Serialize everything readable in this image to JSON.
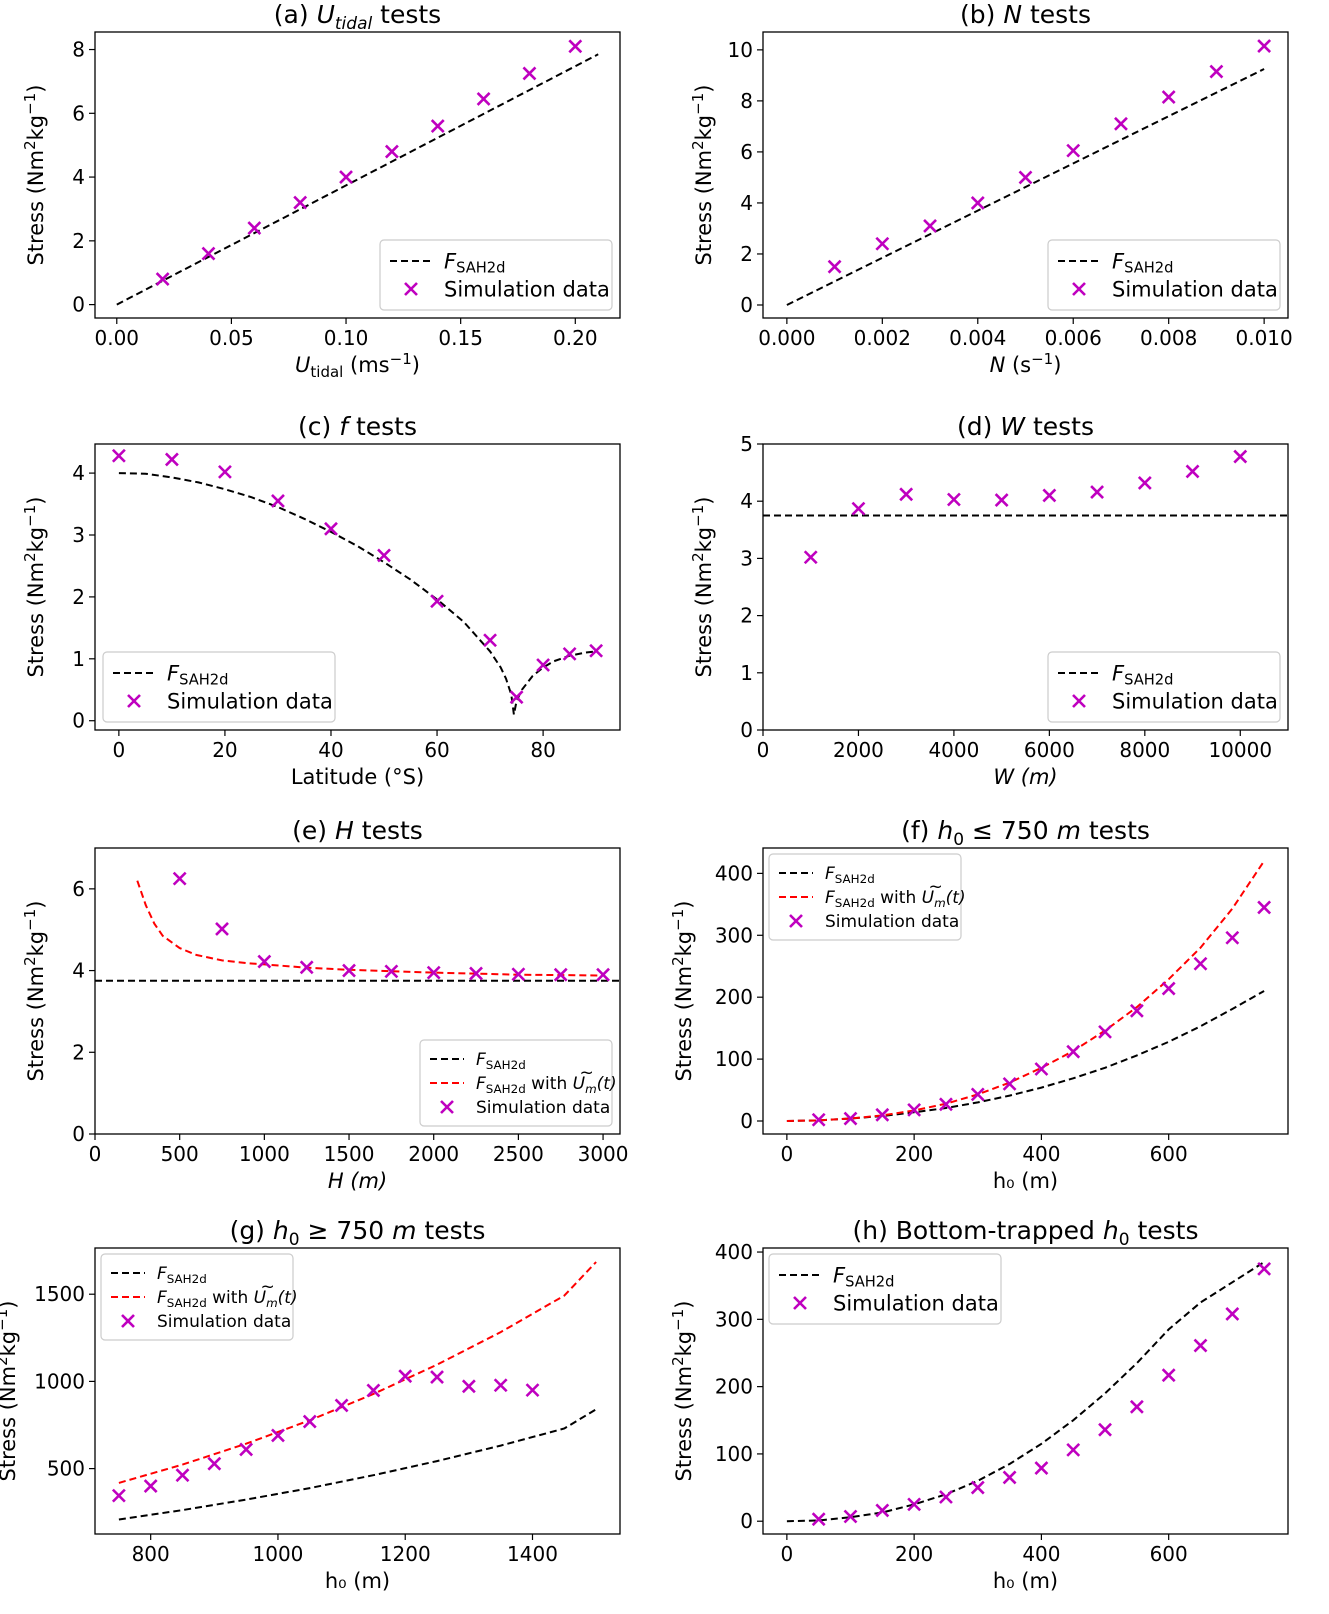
{
  "colors": {
    "fit": "#000000",
    "fit_mod": "#ff0000",
    "sim": "#bf00bf",
    "axes": "#000000",
    "legend_border": "#cccccc"
  },
  "chart_data": [
    {
      "id": "a",
      "type": "scatter+line",
      "title_prefix": "(a) ",
      "title_var": "U",
      "title_var_sub": "tidal",
      "title_suffix": " tests",
      "xlabel": "U",
      "xlabel_sub": "tidal",
      "xlabel_rest": " (ms",
      "xlabel_sup": "−1",
      "xlabel_end": ")",
      "ylabel": "Stress (Nm",
      "ylabel_sup1": "2",
      "ylabel_mid": "kg",
      "ylabel_sup2": "−1",
      "ylabel_end": ")",
      "xlim": [
        -0.0095,
        0.2195
      ],
      "ylim": [
        -0.42,
        8.55
      ],
      "xticks": [
        0.0,
        0.05,
        0.1,
        0.15,
        0.2
      ],
      "xtick_labels": [
        "0.00",
        "0.05",
        "0.10",
        "0.15",
        "0.20"
      ],
      "yticks": [
        0,
        2,
        4,
        6,
        8
      ],
      "ytick_labels": [
        "0",
        "2",
        "4",
        "6",
        "8"
      ],
      "legend_position": "lower-right",
      "fit": {
        "label": "F",
        "label_sub": "SAH2d",
        "x": [
          0,
          0.21
        ],
        "y": [
          0,
          7.85
        ]
      },
      "sim": {
        "label": "Simulation data",
        "x": [
          0.02,
          0.04,
          0.06,
          0.08,
          0.1,
          0.12,
          0.14,
          0.16,
          0.18,
          0.2
        ],
        "y": [
          0.8,
          1.6,
          2.4,
          3.2,
          4.0,
          4.8,
          5.6,
          6.45,
          7.25,
          8.1
        ]
      }
    },
    {
      "id": "b",
      "type": "scatter+line",
      "title_prefix": "(b) ",
      "title_var": "N",
      "title_suffix": " tests",
      "xlabel": "N",
      "xlabel_rest": " (s",
      "xlabel_sup": "−1",
      "xlabel_end": ")",
      "ylabel": "Stress (Nm",
      "ylabel_sup1": "2",
      "ylabel_mid": "kg",
      "ylabel_sup2": "−1",
      "ylabel_end": ")",
      "xlim": [
        -0.0005,
        0.0105
      ],
      "ylim": [
        -0.51,
        10.7
      ],
      "xticks": [
        0,
        0.002,
        0.004,
        0.006,
        0.008,
        0.01
      ],
      "xtick_labels": [
        "0.000",
        "0.002",
        "0.004",
        "0.006",
        "0.008",
        "0.010"
      ],
      "yticks": [
        0,
        2,
        4,
        6,
        8,
        10
      ],
      "ytick_labels": [
        "0",
        "2",
        "4",
        "6",
        "8",
        "10"
      ],
      "legend_position": "lower-right",
      "fit": {
        "label": "F",
        "label_sub": "SAH2d",
        "x": [
          0,
          0.01
        ],
        "y": [
          0,
          9.25
        ]
      },
      "sim": {
        "label": "Simulation data",
        "x": [
          0.001,
          0.002,
          0.003,
          0.004,
          0.005,
          0.006,
          0.007,
          0.008,
          0.009,
          0.01
        ],
        "y": [
          1.5,
          2.4,
          3.1,
          4.0,
          5.0,
          6.05,
          7.1,
          8.15,
          9.15,
          10.15
        ]
      }
    },
    {
      "id": "c",
      "type": "scatter+line",
      "title_prefix": "(c) ",
      "title_var": "f",
      "title_suffix": " tests",
      "xlabel_plain": "Latitude (°S)",
      "ylabel": "Stress (Nm",
      "ylabel_sup1": "2",
      "ylabel_mid": "kg",
      "ylabel_sup2": "−1",
      "ylabel_end": ")",
      "xlim": [
        -4.5,
        94.5
      ],
      "ylim": [
        -0.15,
        4.47
      ],
      "xticks": [
        0,
        20,
        40,
        60,
        80
      ],
      "xtick_labels": [
        "0",
        "20",
        "40",
        "60",
        "80"
      ],
      "yticks": [
        0,
        1,
        2,
        3,
        4
      ],
      "ytick_labels": [
        "0",
        "1",
        "2",
        "3",
        "4"
      ],
      "legend_position": "lower-left",
      "fit": {
        "label": "F",
        "label_sub": "SAH2d",
        "x": [
          0,
          5,
          10,
          15,
          20,
          25,
          30,
          35,
          40,
          45,
          50,
          55,
          60,
          65,
          70,
          72,
          73,
          74,
          74.5,
          75,
          76,
          78,
          80,
          82,
          85,
          88,
          90
        ],
        "y": [
          4.0,
          3.99,
          3.93,
          3.85,
          3.74,
          3.61,
          3.45,
          3.26,
          3.05,
          2.82,
          2.56,
          2.28,
          1.96,
          1.6,
          1.12,
          0.86,
          0.68,
          0.42,
          0.1,
          0.32,
          0.5,
          0.72,
          0.86,
          0.96,
          1.05,
          1.1,
          1.12
        ]
      },
      "sim": {
        "label": "Simulation data",
        "x": [
          0,
          10,
          20,
          30,
          40,
          50,
          60,
          70,
          75,
          80,
          85,
          90
        ],
        "y": [
          4.28,
          4.22,
          4.02,
          3.55,
          3.1,
          2.67,
          1.93,
          1.3,
          0.38,
          0.9,
          1.08,
          1.13
        ]
      }
    },
    {
      "id": "d",
      "type": "scatter+line",
      "title_prefix": "(d) ",
      "title_var": "W",
      "title_suffix": " tests",
      "xlabel": "W",
      "xlabel_italic_unit": " (m)",
      "ylabel": "Stress (Nm",
      "ylabel_sup1": "2",
      "ylabel_mid": "kg",
      "ylabel_sup2": "−1",
      "ylabel_end": ")",
      "xlim": [
        0,
        11000
      ],
      "ylim": [
        0,
        5
      ],
      "xticks": [
        0,
        2000,
        4000,
        6000,
        8000,
        10000
      ],
      "xtick_labels": [
        "0",
        "2000",
        "4000",
        "6000",
        "8000",
        "10000"
      ],
      "yticks": [
        0,
        1,
        2,
        3,
        4,
        5
      ],
      "ytick_labels": [
        "0",
        "1",
        "2",
        "3",
        "4",
        "5"
      ],
      "legend_position": "lower-right",
      "fit": {
        "label": "F",
        "label_sub": "SAH2d",
        "x": [
          0,
          11000
        ],
        "y": [
          3.75,
          3.75
        ]
      },
      "sim": {
        "label": "Simulation data",
        "x": [
          1000,
          2000,
          3000,
          4000,
          5000,
          6000,
          7000,
          8000,
          9000,
          10000
        ],
        "y": [
          3.02,
          3.87,
          4.12,
          4.03,
          4.02,
          4.1,
          4.16,
          4.32,
          4.52,
          4.78
        ]
      }
    },
    {
      "id": "e",
      "type": "scatter+line",
      "title_prefix": "(e) ",
      "title_var": "H",
      "title_suffix": " tests",
      "xlabel": "H",
      "xlabel_italic_unit": " (m)",
      "ylabel": "Stress (Nm",
      "ylabel_sup1": "2",
      "ylabel_mid": "kg",
      "ylabel_sup2": "−1",
      "ylabel_end": ")",
      "xlim": [
        0,
        3100
      ],
      "ylim": [
        0,
        7.0
      ],
      "xticks": [
        0,
        500,
        1000,
        1500,
        2000,
        2500,
        3000
      ],
      "xtick_labels": [
        "0",
        "500",
        "1000",
        "1500",
        "2000",
        "2500",
        "3000"
      ],
      "yticks": [
        0,
        2,
        4,
        6
      ],
      "ytick_labels": [
        "0",
        "2",
        "4",
        "6"
      ],
      "legend_position": "lower-right",
      "fit": {
        "label": "F",
        "label_sub": "SAH2d",
        "x": [
          0,
          3100
        ],
        "y": [
          3.75,
          3.75
        ]
      },
      "fit_mod": {
        "label": "F",
        "label_sub": "SAH2d",
        "label_rest": " with ",
        "label_u": "U",
        "label_u_sub": "m",
        "label_end": "(t)",
        "x": [
          250,
          300,
          350,
          400,
          500,
          600,
          750,
          900,
          1000,
          1250,
          1500,
          2000,
          2500,
          3000
        ],
        "y": [
          6.2,
          5.6,
          5.15,
          4.85,
          4.55,
          4.38,
          4.25,
          4.18,
          4.15,
          4.07,
          4.02,
          3.95,
          3.9,
          3.88
        ]
      },
      "sim": {
        "label": "Simulation data",
        "x": [
          500,
          750,
          1000,
          1250,
          1500,
          1750,
          2000,
          2250,
          2500,
          2750,
          3000
        ],
        "y": [
          6.25,
          5.02,
          4.22,
          4.08,
          4.0,
          3.98,
          3.95,
          3.93,
          3.91,
          3.9,
          3.9
        ]
      }
    },
    {
      "id": "f",
      "type": "scatter+line",
      "title_prefix": "(f) ",
      "title_var": "h",
      "title_var_sub": "0",
      "title_suffix": " ≤ 750 ",
      "title_unit": "m",
      "title_end": " tests",
      "xlabel_plain": "h₀ (m)",
      "ylabel": "Stress (Nm",
      "ylabel_sup1": "2",
      "ylabel_mid": "kg",
      "ylabel_sup2": "−1",
      "ylabel_end": ")",
      "xlim": [
        -37.5,
        787.5
      ],
      "ylim": [
        -21,
        441
      ],
      "xticks": [
        0,
        200,
        400,
        600
      ],
      "xtick_labels": [
        "0",
        "200",
        "400",
        "600"
      ],
      "yticks": [
        0,
        100,
        200,
        300,
        400
      ],
      "ytick_labels": [
        "0",
        "100",
        "200",
        "300",
        "400"
      ],
      "legend_position": "upper-left",
      "fit": {
        "label": "F",
        "label_sub": "SAH2d",
        "x": [
          0,
          50,
          100,
          150,
          200,
          250,
          300,
          350,
          400,
          450,
          500,
          550,
          600,
          650,
          700,
          750
        ],
        "y": [
          0,
          1,
          4,
          8,
          14,
          21,
          30,
          41,
          54,
          69,
          86,
          106,
          128,
          153,
          181,
          210
        ]
      },
      "fit_mod": {
        "label": "F",
        "label_sub": "SAH2d",
        "label_rest": " with ",
        "label_u": "U",
        "label_u_sub": "m",
        "label_end": "(t)",
        "x": [
          0,
          50,
          100,
          150,
          200,
          250,
          300,
          350,
          400,
          450,
          500,
          550,
          600,
          650,
          700,
          750
        ],
        "y": [
          0,
          1,
          4,
          9,
          17,
          28,
          43,
          62,
          86,
          113,
          146,
          184,
          229,
          280,
          343,
          420
        ]
      },
      "sim": {
        "label": "Simulation data",
        "x": [
          50,
          100,
          150,
          200,
          250,
          300,
          350,
          400,
          450,
          500,
          550,
          600,
          650,
          700,
          750
        ],
        "y": [
          2,
          4,
          10,
          18,
          27,
          43,
          60,
          84,
          112,
          144,
          178,
          214,
          254,
          296,
          345
        ]
      }
    },
    {
      "id": "g",
      "type": "scatter+line",
      "title_prefix": "(g) ",
      "title_var": "h",
      "title_var_sub": "0",
      "title_suffix": " ≥ 750 ",
      "title_unit": "m",
      "title_end": " tests",
      "xlabel_plain": "h₀ (m)",
      "ylabel": "Stress (Nm",
      "ylabel_sup1": "2",
      "ylabel_mid": "kg",
      "ylabel_sup2": "−1",
      "ylabel_end": ")",
      "xlim": [
        712.5,
        1537.5
      ],
      "ylim": [
        125,
        1765
      ],
      "xticks": [
        800,
        1000,
        1200,
        1400
      ],
      "xtick_labels": [
        "800",
        "1000",
        "1200",
        "1400"
      ],
      "yticks": [
        500,
        1000,
        1500
      ],
      "ytick_labels": [
        "500",
        "1000",
        "1500"
      ],
      "legend_position": "upper-left",
      "fit": {
        "label": "F",
        "label_sub": "SAH2d",
        "x": [
          750,
          850,
          950,
          1050,
          1150,
          1250,
          1350,
          1450,
          1500
        ],
        "y": [
          208,
          262,
          322,
          388,
          462,
          543,
          632,
          730,
          840
        ]
      },
      "fit_mod": {
        "label": "F",
        "label_sub": "SAH2d",
        "label_rest": " with ",
        "label_u": "U",
        "label_u_sub": "m",
        "label_end": "(t)",
        "x": [
          750,
          850,
          950,
          1050,
          1150,
          1250,
          1350,
          1450,
          1500
        ],
        "y": [
          418,
          523,
          643,
          777,
          928,
          1096,
          1283,
          1492,
          1685
        ]
      },
      "sim": {
        "label": "Simulation data",
        "x": [
          750,
          800,
          850,
          900,
          950,
          1000,
          1050,
          1100,
          1150,
          1200,
          1250,
          1300,
          1350,
          1400
        ],
        "y": [
          345,
          400,
          462,
          528,
          610,
          690,
          770,
          862,
          948,
          1030,
          1025,
          972,
          978,
          950
        ]
      }
    },
    {
      "id": "h",
      "type": "scatter+line",
      "title_prefix": "(h) Bottom-trapped ",
      "title_var": "h",
      "title_var_sub": "0",
      "title_suffix": " tests",
      "xlabel_plain": "h₀ (m)",
      "ylabel": "Stress (Nm",
      "ylabel_sup1": "2",
      "ylabel_mid": "kg",
      "ylabel_sup2": "−1",
      "ylabel_end": ")",
      "xlim": [
        -37.5,
        787.5
      ],
      "ylim": [
        -19,
        406
      ],
      "xticks": [
        0,
        200,
        400,
        600
      ],
      "xtick_labels": [
        "0",
        "200",
        "400",
        "600"
      ],
      "yticks": [
        0,
        100,
        200,
        300,
        400
      ],
      "ytick_labels": [
        "0",
        "100",
        "200",
        "300",
        "400"
      ],
      "legend_position": "upper-left",
      "fit": {
        "label": "F",
        "label_sub": "SAH2d",
        "x": [
          0,
          50,
          100,
          150,
          200,
          250,
          300,
          350,
          400,
          450,
          500,
          550,
          600,
          650,
          700,
          750
        ],
        "y": [
          0,
          1,
          6,
          13,
          25,
          40,
          60,
          85,
          115,
          150,
          190,
          235,
          285,
          325,
          355,
          385
        ]
      },
      "sim": {
        "label": "Simulation data",
        "x": [
          50,
          100,
          150,
          200,
          250,
          300,
          350,
          400,
          450,
          500,
          550,
          600,
          650,
          700,
          750
        ],
        "y": [
          3,
          7,
          16,
          25,
          36,
          50,
          65,
          79,
          106,
          136,
          170,
          217,
          261,
          308,
          375
        ]
      }
    }
  ]
}
